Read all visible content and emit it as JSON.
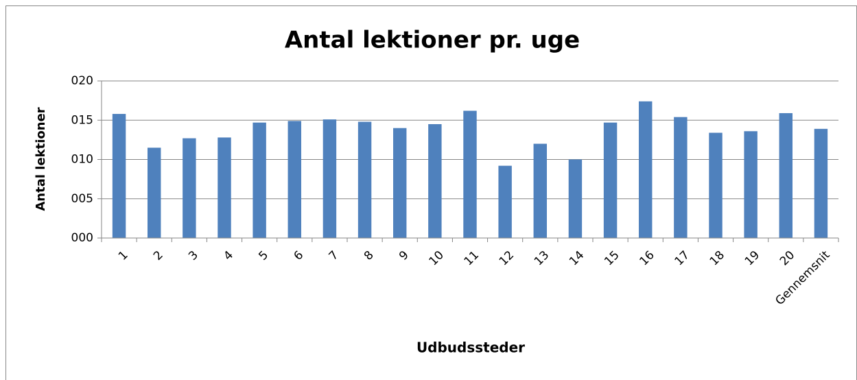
{
  "chart_data": {
    "type": "bar",
    "title": "Antal lektioner pr. uge",
    "x_label": "Udbudssteder",
    "y_label": "Antal lektioner",
    "categories": [
      "1",
      "2",
      "3",
      "4",
      "5",
      "6",
      "7",
      "8",
      "9",
      "10",
      "11",
      "12",
      "13",
      "14",
      "15",
      "16",
      "17",
      "18",
      "19",
      "20",
      "Gennemsnit"
    ],
    "values": [
      15.8,
      11.5,
      12.7,
      12.8,
      14.7,
      14.9,
      15.1,
      14.8,
      14.0,
      14.5,
      16.2,
      9.2,
      12.0,
      10.0,
      14.7,
      17.4,
      15.4,
      13.4,
      13.6,
      15.9,
      13.9
    ],
    "color": "#4f81bd",
    "ylim": [
      0,
      20
    ],
    "yticks": [
      {
        "value": 0,
        "label": "000"
      },
      {
        "value": 5,
        "label": "005"
      },
      {
        "value": 10,
        "label": "010"
      },
      {
        "value": 15,
        "label": "015"
      },
      {
        "value": 20,
        "label": "020"
      }
    ],
    "grid": true
  }
}
